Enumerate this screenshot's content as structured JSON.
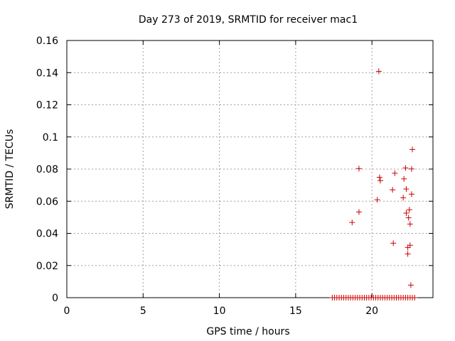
{
  "chart_data": {
    "type": "scatter",
    "title": "Day 273 of 2019, SRMTID for receiver mac1",
    "xlabel": "GPS time / hours",
    "ylabel": "SRMTID / TECUs",
    "xlim": [
      0,
      24
    ],
    "ylim": [
      0,
      0.16
    ],
    "x_ticks": [
      0,
      5,
      10,
      15,
      20
    ],
    "x_tick_labels": [
      "0",
      "5",
      "10",
      "15",
      "20"
    ],
    "y_ticks": [
      0,
      0.02,
      0.04,
      0.06,
      0.08,
      0.1,
      0.12,
      0.14,
      0.16
    ],
    "y_tick_labels": [
      "0",
      "0.02",
      "0.04",
      "0.06",
      "0.08",
      "0.1",
      "0.12",
      "0.14",
      "0.16"
    ],
    "grid": true,
    "marker": "+",
    "marker_color": "#cc0000",
    "series": [
      {
        "name": "SRMTID",
        "points": [
          {
            "x": 20.45,
            "y": 0.1408
          },
          {
            "x": 22.65,
            "y": 0.0922
          },
          {
            "x": 19.15,
            "y": 0.0803
          },
          {
            "x": 22.2,
            "y": 0.0807
          },
          {
            "x": 22.6,
            "y": 0.0801
          },
          {
            "x": 21.5,
            "y": 0.0774
          },
          {
            "x": 20.5,
            "y": 0.0749
          },
          {
            "x": 20.55,
            "y": 0.0728
          },
          {
            "x": 22.1,
            "y": 0.0739
          },
          {
            "x": 21.35,
            "y": 0.0671
          },
          {
            "x": 22.25,
            "y": 0.0676
          },
          {
            "x": 22.6,
            "y": 0.0644
          },
          {
            "x": 22.05,
            "y": 0.0622
          },
          {
            "x": 20.35,
            "y": 0.0609
          },
          {
            "x": 22.45,
            "y": 0.0547
          },
          {
            "x": 19.15,
            "y": 0.0533
          },
          {
            "x": 22.25,
            "y": 0.0526
          },
          {
            "x": 22.4,
            "y": 0.0497
          },
          {
            "x": 18.7,
            "y": 0.0468
          },
          {
            "x": 22.5,
            "y": 0.0458
          },
          {
            "x": 21.4,
            "y": 0.0339
          },
          {
            "x": 22.5,
            "y": 0.0326
          },
          {
            "x": 22.35,
            "y": 0.0312
          },
          {
            "x": 22.35,
            "y": 0.0272
          },
          {
            "x": 22.55,
            "y": 0.0078
          },
          {
            "x": 17.4,
            "y": 0
          },
          {
            "x": 17.55,
            "y": 0
          },
          {
            "x": 17.7,
            "y": 0
          },
          {
            "x": 17.85,
            "y": 0
          },
          {
            "x": 18.0,
            "y": 0
          },
          {
            "x": 18.15,
            "y": 0
          },
          {
            "x": 18.3,
            "y": 0
          },
          {
            "x": 18.45,
            "y": 0
          },
          {
            "x": 18.6,
            "y": 0
          },
          {
            "x": 18.75,
            "y": 0
          },
          {
            "x": 18.9,
            "y": 0
          },
          {
            "x": 19.05,
            "y": 0
          },
          {
            "x": 19.2,
            "y": 0
          },
          {
            "x": 19.35,
            "y": 0
          },
          {
            "x": 19.5,
            "y": 0
          },
          {
            "x": 19.65,
            "y": 0
          },
          {
            "x": 19.8,
            "y": 0
          },
          {
            "x": 19.95,
            "y": 0
          },
          {
            "x": 20.1,
            "y": 0
          },
          {
            "x": 20.25,
            "y": 0
          },
          {
            "x": 20.4,
            "y": 0
          },
          {
            "x": 20.55,
            "y": 0
          },
          {
            "x": 20.7,
            "y": 0
          },
          {
            "x": 20.85,
            "y": 0
          },
          {
            "x": 21.0,
            "y": 0
          },
          {
            "x": 21.15,
            "y": 0
          },
          {
            "x": 21.3,
            "y": 0
          },
          {
            "x": 21.45,
            "y": 0
          },
          {
            "x": 21.6,
            "y": 0
          },
          {
            "x": 21.75,
            "y": 0
          },
          {
            "x": 21.9,
            "y": 0
          },
          {
            "x": 22.05,
            "y": 0
          },
          {
            "x": 22.2,
            "y": 0
          },
          {
            "x": 22.35,
            "y": 0
          },
          {
            "x": 22.5,
            "y": 0
          },
          {
            "x": 22.65,
            "y": 0
          },
          {
            "x": 22.8,
            "y": 0
          }
        ]
      }
    ]
  }
}
